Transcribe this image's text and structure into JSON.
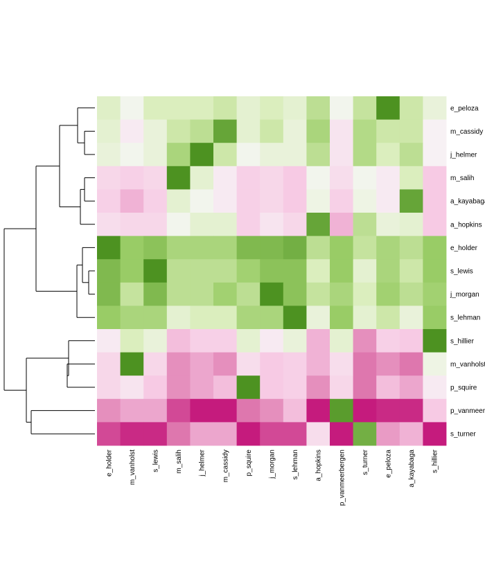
{
  "chart_data": {
    "type": "heatmap",
    "title": "",
    "xlabel": "",
    "ylabel": "",
    "color_scale": {
      "low": "#c51b7d",
      "mid": "#f7f7f7",
      "high": "#4d9221",
      "range": [
        -1,
        1
      ]
    },
    "columns": [
      "e_holder",
      "m_vanholst",
      "s_lewis",
      "m_salih",
      "j_helmer",
      "m_cassidy",
      "p_squire",
      "j_morgan",
      "s_lehman",
      "a_hopkins",
      "p_vanmeerbergen",
      "s_turner",
      "e_peloza",
      "a_kayabaga",
      "s_hillier"
    ],
    "rows": [
      "e_peloza",
      "m_cassidy",
      "j_helmer",
      "m_salih",
      "a_kayabaga",
      "a_hopkins",
      "e_holder",
      "s_lewis",
      "j_morgan",
      "s_lehman",
      "s_hillier",
      "m_vanholst",
      "p_squire",
      "p_vanmeerbergen",
      "s_turner"
    ],
    "values": [
      [
        0.25,
        0.05,
        0.3,
        0.3,
        0.3,
        0.4,
        0.2,
        0.3,
        0.2,
        0.5,
        0.05,
        0.45,
        1.0,
        0.4,
        0.15
      ],
      [
        0.2,
        -0.1,
        0.15,
        0.4,
        0.5,
        0.9,
        0.2,
        0.4,
        0.15,
        0.6,
        -0.15,
        0.55,
        0.4,
        0.4,
        -0.05
      ],
      [
        0.15,
        0.05,
        0.15,
        0.6,
        1.0,
        0.4,
        0.05,
        0.15,
        0.15,
        0.5,
        -0.15,
        0.55,
        0.3,
        0.5,
        -0.05
      ],
      [
        -0.25,
        -0.3,
        -0.25,
        1.0,
        0.2,
        -0.1,
        -0.3,
        -0.25,
        -0.35,
        0.05,
        -0.2,
        0.05,
        -0.1,
        0.3,
        -0.35
      ],
      [
        -0.3,
        -0.45,
        -0.3,
        0.2,
        0.05,
        -0.1,
        -0.3,
        -0.25,
        -0.35,
        0.1,
        -0.3,
        0.1,
        -0.1,
        0.9,
        -0.35
      ],
      [
        -0.2,
        -0.25,
        -0.25,
        0.05,
        0.2,
        0.2,
        -0.3,
        -0.15,
        -0.25,
        0.9,
        -0.45,
        0.5,
        0.15,
        0.2,
        -0.35
      ],
      [
        1.0,
        0.7,
        0.75,
        0.6,
        0.6,
        0.6,
        0.8,
        0.8,
        0.85,
        0.5,
        0.7,
        0.45,
        0.6,
        0.5,
        0.7
      ],
      [
        0.8,
        0.7,
        1.0,
        0.5,
        0.5,
        0.5,
        0.65,
        0.75,
        0.75,
        0.3,
        0.7,
        0.2,
        0.6,
        0.4,
        0.7
      ],
      [
        0.8,
        0.45,
        0.8,
        0.5,
        0.5,
        0.65,
        0.5,
        1.0,
        0.75,
        0.45,
        0.6,
        0.3,
        0.65,
        0.5,
        0.65
      ],
      [
        0.7,
        0.6,
        0.6,
        0.2,
        0.3,
        0.3,
        0.6,
        0.6,
        1.0,
        0.15,
        0.7,
        0.2,
        0.4,
        0.15,
        0.7
      ],
      [
        -0.1,
        0.3,
        0.15,
        -0.4,
        -0.3,
        -0.3,
        0.2,
        -0.1,
        0.15,
        -0.45,
        0.2,
        -0.6,
        -0.3,
        -0.35,
        1.0
      ],
      [
        -0.25,
        1.0,
        -0.25,
        -0.6,
        -0.5,
        -0.6,
        -0.2,
        -0.35,
        -0.3,
        -0.45,
        -0.2,
        -0.7,
        -0.6,
        -0.7,
        0.1
      ],
      [
        -0.25,
        -0.15,
        -0.35,
        -0.6,
        -0.5,
        -0.4,
        1.0,
        -0.35,
        -0.3,
        -0.6,
        -0.25,
        -0.7,
        -0.4,
        -0.5,
        -0.1
      ],
      [
        -0.6,
        -0.5,
        -0.5,
        -0.85,
        -1.0,
        -1.0,
        -0.7,
        -0.6,
        -0.4,
        -1.0,
        0.95,
        -1.0,
        -0.95,
        -0.95,
        -0.35
      ],
      [
        -0.85,
        -0.95,
        -0.95,
        -0.7,
        -0.5,
        -0.5,
        -1.0,
        -0.85,
        -0.85,
        -0.2,
        -1.0,
        0.85,
        -0.55,
        -0.45,
        -1.0
      ]
    ],
    "legend": "none",
    "grid": false
  }
}
